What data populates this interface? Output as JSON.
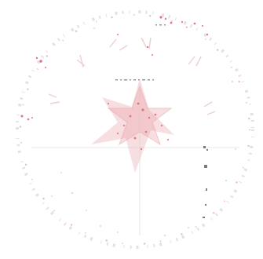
{
  "image": {
    "kind": "faded red circular seal stamp"
  },
  "colors": {
    "background": "#ffffff",
    "stamp_red": "#d9485a",
    "stamp_pink": "#e8a0a8",
    "stamp_grey": "#bdbdbd",
    "specks_dark": "#555555"
  },
  "icons": {
    "seal": "seal-stamp-icon",
    "star": "five-point-star-icon"
  }
}
